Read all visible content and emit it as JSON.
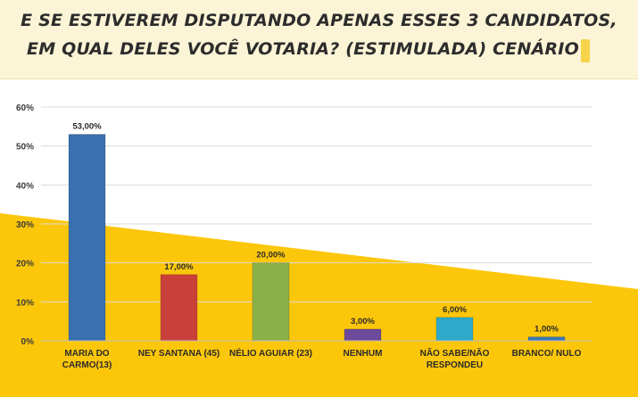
{
  "header": {
    "title_line1": "E SE ESTIVEREM DISPUTANDO APENAS ESSES 3 CANDIDATOS,",
    "title_line2": "EM QUAL DELES VOCÊ VOTARIA? (ESTIMULADA) CENÁRIO"
  },
  "colors": {
    "background_band": "#fcc70a",
    "header_bg": "#fbf4d6"
  },
  "chart_data": {
    "type": "bar",
    "categories": [
      "MARIA DO CARMO(13)",
      "NEY SANTANA (45)",
      "NÉLIO AGUIAR (23)",
      "NENHUM",
      "NÃO SABE/NÃO RESPONDEU",
      "BRANCO/ NULO"
    ],
    "category_lines": [
      [
        "MARIA DO",
        "CARMO(13)"
      ],
      [
        "NEY SANTANA (45)"
      ],
      [
        "NÉLIO AGUIAR (23)"
      ],
      [
        "NENHUM"
      ],
      [
        "NÃO SABE/NÃO",
        "RESPONDEU"
      ],
      [
        "BRANCO/ NULO"
      ]
    ],
    "values": [
      53,
      17,
      20,
      3,
      6,
      1
    ],
    "value_labels": [
      "53,00%",
      "17,00%",
      "20,00%",
      "3,00%",
      "6,00%",
      "1,00%"
    ],
    "bar_colors": [
      "#3a6fb0",
      "#c9403a",
      "#8ab04a",
      "#6e4a9a",
      "#2ea9c9",
      "#3a78b8"
    ],
    "ylim": [
      0,
      60
    ],
    "yticks": [
      0,
      10,
      20,
      30,
      40,
      50,
      60
    ],
    "ytick_labels": [
      "0%",
      "10%",
      "20%",
      "30%",
      "40%",
      "50%",
      "60%"
    ],
    "grid": true,
    "legend": "none"
  }
}
